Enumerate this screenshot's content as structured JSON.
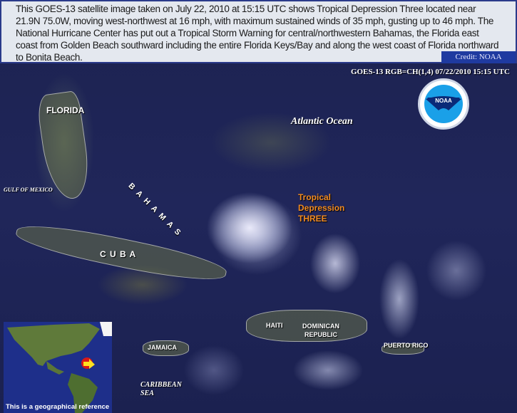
{
  "caption": {
    "text": "This GOES-13 satellite image taken on July 22, 2010 at 15:15 UTC shows Tropical Depression Three located near 21.9N 75.0W, moving west-northwest at 16 mph, with maximum sustained winds of 35 mph, gusting up to 46 mph. The National Hurricane Center has put out a Tropical Storm Warning for central/northwestern Bahamas, the Florida east coast from Golden Beach southward including the entire Florida Keys/Bay and along the west coast of Florida northward to Bonita Beach.",
    "credit": "Credit: NOAA"
  },
  "image": {
    "header": "GOES-13 RGB=CH(1,4)  07/22/2010 15:15 UTC",
    "logo_text": "NOAA",
    "labels": {
      "florida": "FLORIDA",
      "gulf": "GULF OF MEXICO",
      "atlantic": "Atlantic  Ocean",
      "bahamas": "BAHAMAS",
      "cuba": "C U B A",
      "haiti": "HAITI",
      "dominican_1": "DOMINICAN",
      "dominican_2": "REPUBLIC",
      "jamaica": "JAMAICA",
      "puerto_rico": "PUERTO RICO",
      "caribbean_1": "CARIBBEAN",
      "caribbean_2": "SEA"
    },
    "storm": {
      "line1": "Tropical",
      "line2": "Depression",
      "line3": "THREE",
      "color": "#f08a20"
    },
    "inset_caption": "This is a geographical reference"
  }
}
